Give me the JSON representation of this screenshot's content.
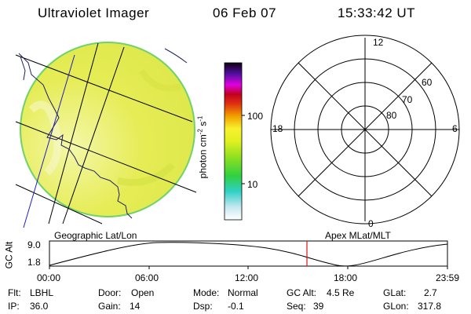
{
  "header": {
    "instrument": "Ultraviolet Imager",
    "date": "06 Feb 07",
    "time": "15:33:42 UT"
  },
  "colorbar": {
    "unit_label": "photon cm",
    "unit_sup1": "-2",
    "unit_mid": "s",
    "unit_sup2": "-1",
    "tick_100": "100",
    "tick_10": "10",
    "scale": "log"
  },
  "polar": {
    "mlt_top": "12",
    "mlt_left": "18",
    "mlt_right": "6",
    "mlt_bottom": "0",
    "lat_60": "60",
    "lat_70": "70",
    "lat_80": "80"
  },
  "labels": {
    "geo": "Geographic Lat/Lon",
    "apex": "Apex MLat/MLT"
  },
  "orbit": {
    "ylabel": "GC Alt",
    "ytick_high": "9.0",
    "ytick_low": "1.8",
    "xticks": [
      "00:00",
      "06:00",
      "12:00",
      "18:00",
      "23:59"
    ],
    "marker_time": "15:33:42"
  },
  "info": {
    "flt_label": "Flt:",
    "flt_value": "LBHL",
    "ip_label": "IP:",
    "ip_value": "36.0",
    "door_label": "Door:",
    "door_value": "Open",
    "gain_label": "Gain:",
    "gain_value": "14",
    "mode_label": "Mode:",
    "mode_value": "Normal",
    "dsp_label": "Dsp:",
    "dsp_value": "-0.1",
    "gcalt_label": "GC Alt:",
    "gcalt_value": "4.5 Re",
    "seq_label": "Seq:",
    "seq_value": "39",
    "glat_label": "GLat:",
    "glat_value": "2.7",
    "glon_label": "GLon:",
    "glon_value": "317.8"
  },
  "colors": {
    "disk_fill": "#e8ee4a",
    "disk_edge": "#7ed957",
    "marker": "#e01010",
    "coast": "#202060"
  }
}
